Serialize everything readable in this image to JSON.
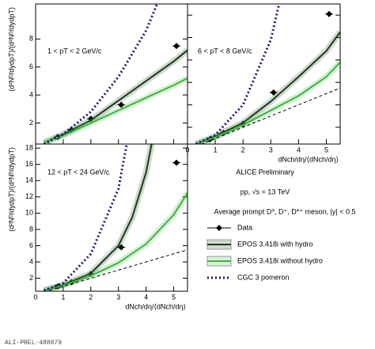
{
  "chart_data": [
    {
      "type": "line",
      "label": "1 < pT < 2 GeV/c",
      "ylabel": "(d²Nᴰ/dydpT)/(d²Nᴰ/dydpT)",
      "xlim": [
        0,
        5.5
      ],
      "ylim": [
        0.5,
        10.5
      ],
      "xticks": [
        0,
        1,
        2,
        3,
        4,
        5
      ],
      "yticks": [
        2,
        4,
        6,
        8
      ],
      "show_xtick_labels": false,
      "show_ytick_labels": true,
      "series": [
        {
          "name": "Data",
          "style": "points",
          "color": "#000000",
          "x": [
            0.8,
            1.3,
            2.0,
            3.1,
            5.1
          ],
          "values": [
            1.0,
            1.5,
            2.3,
            3.3,
            7.5
          ]
        },
        {
          "name": "EPOS 3.418i with hydro",
          "style": "band",
          "color": "#1a3d1a",
          "x": [
            0.3,
            1,
            2,
            3,
            4,
            5,
            5.5
          ],
          "values": [
            0.6,
            1.2,
            2.2,
            3.6,
            5.0,
            6.4,
            7.2
          ]
        },
        {
          "name": "EPOS 3.418i without hydro",
          "style": "band",
          "color": "#3cb43c",
          "x": [
            0.3,
            1,
            2,
            3,
            4,
            5,
            5.5
          ],
          "values": [
            0.6,
            1.1,
            2.0,
            2.9,
            3.8,
            4.7,
            5.2
          ]
        },
        {
          "name": "CGC 3 pomeron",
          "style": "dots",
          "color": "#1a1a7a",
          "x": [
            0.3,
            1,
            2,
            3,
            4,
            4.4
          ],
          "values": [
            0.5,
            1.2,
            2.8,
            5.3,
            8.6,
            10.5
          ]
        }
      ]
    },
    {
      "type": "line",
      "label": "6 < pT < 8 GeV/c",
      "xlabel": "dNch/dη/⟨dNch/dη⟩",
      "xlim": [
        0,
        5.5
      ],
      "ylim": [
        0.5,
        13
      ],
      "xticks": [
        0,
        1,
        2,
        3,
        4,
        5
      ],
      "yticks": [
        2,
        4,
        6,
        8,
        10,
        12
      ],
      "show_xtick_labels": true,
      "show_ytick_labels": false,
      "series": [
        {
          "style": "points",
          "color": "#000000",
          "x": [
            0.8,
            1.3,
            2.0,
            3.1,
            5.1
          ],
          "values": [
            0.9,
            1.5,
            2.3,
            5.1,
            12.1
          ]
        },
        {
          "style": "band",
          "color": "#1a3d1a",
          "x": [
            0.3,
            1,
            2,
            3,
            4,
            5,
            5.5
          ],
          "values": [
            0.5,
            1.2,
            2.4,
            4.3,
            6.5,
            8.8,
            10.5
          ]
        },
        {
          "style": "band",
          "color": "#3cb43c",
          "x": [
            0.3,
            1,
            2,
            3,
            4,
            5,
            5.5
          ],
          "values": [
            0.5,
            1.1,
            2.2,
            3.5,
            4.8,
            6.5,
            7.8
          ]
        },
        {
          "style": "dots",
          "color": "#1a1a7a",
          "x": [
            0.3,
            1,
            2,
            3,
            3.3
          ],
          "values": [
            0.5,
            1.3,
            4,
            9.8,
            13
          ]
        },
        {
          "style": "dash",
          "color": "#000000",
          "x": [
            0.3,
            5.5
          ],
          "values": [
            0.3,
            5.5
          ]
        }
      ]
    },
    {
      "type": "line",
      "label": "12 < pT < 24 GeV/c",
      "ylabel": "(d²Nᴰ/dydpT)/(d²Nᴰ/dydpT)",
      "xlabel": "dNch/dη/⟨dNch/dη⟩",
      "xlim": [
        0,
        5.5
      ],
      "ylim": [
        0.4,
        18.5
      ],
      "xticks": [
        0,
        1,
        2,
        3,
        4,
        5
      ],
      "yticks": [
        2,
        4,
        6,
        8,
        10,
        12,
        14,
        16,
        18
      ],
      "show_xtick_labels": true,
      "show_ytick_labels": true,
      "series": [
        {
          "style": "points",
          "color": "#000000",
          "x": [
            0.8,
            1.3,
            2.0,
            3.1,
            5.1
          ],
          "values": [
            1.0,
            1.5,
            2.5,
            5.8,
            16.2
          ]
        },
        {
          "style": "band",
          "color": "#1a3d1a",
          "x": [
            0.3,
            1,
            2,
            3,
            3.5,
            4,
            4.2
          ],
          "values": [
            0.5,
            1.2,
            2.6,
            6.0,
            9.5,
            15,
            18.5
          ]
        },
        {
          "style": "band",
          "color": "#3cb43c",
          "x": [
            0.3,
            1,
            2,
            3,
            4,
            5,
            5.5
          ],
          "values": [
            0.5,
            1.1,
            2.3,
            3.9,
            6.2,
            9.8,
            12.5
          ]
        },
        {
          "style": "dots",
          "color": "#1a1a7a",
          "x": [
            0.3,
            1,
            2,
            3,
            3.3
          ],
          "values": [
            0.5,
            1.4,
            5,
            13,
            18.5
          ]
        },
        {
          "style": "dash",
          "color": "#000000",
          "x": [
            0.3,
            5.5
          ],
          "values": [
            0.3,
            5.5
          ]
        }
      ]
    }
  ],
  "annotations": [
    "ALICE Preliminary",
    "pp, √s = 13 TeV",
    "Average prompt D⁰, D⁺, D*⁺ meson, |y| < 0.5"
  ],
  "footer": "ALI-PREL-488879"
}
